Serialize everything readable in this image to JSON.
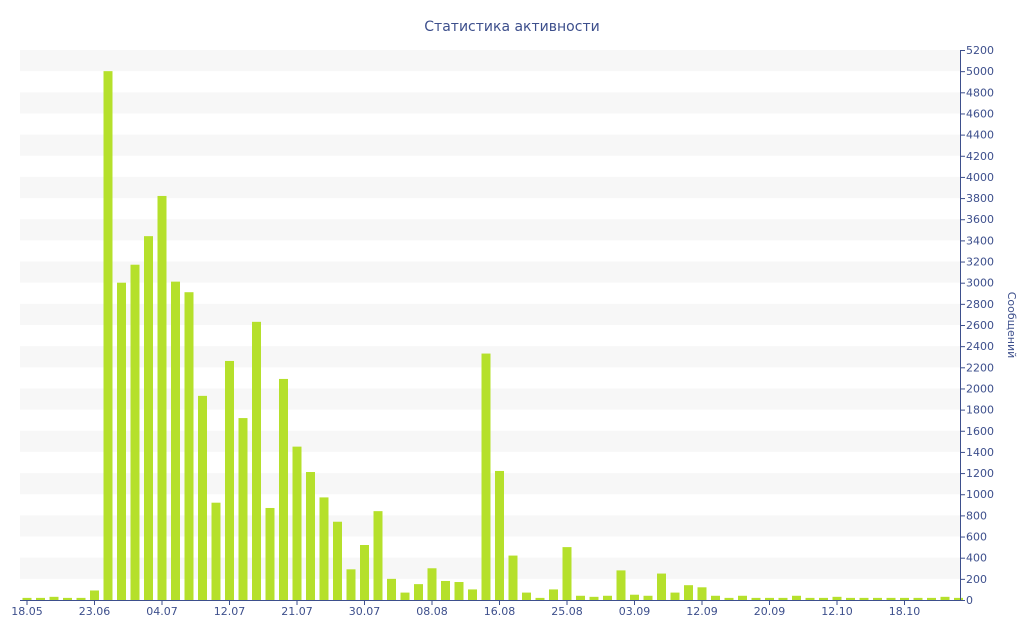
{
  "chart_data": {
    "type": "bar",
    "title": "Статистика активности",
    "ylabel": "Сообщений",
    "xlabel": "",
    "ylim": [
      0,
      5200
    ],
    "y_ticks": [
      0,
      200,
      400,
      600,
      800,
      1000,
      1200,
      1400,
      1600,
      1800,
      2000,
      2200,
      2400,
      2600,
      2800,
      3000,
      3200,
      3400,
      3600,
      3800,
      4000,
      4200,
      4400,
      4600,
      4800,
      5000,
      5200
    ],
    "x_tick_labels": [
      "18.05",
      "23.06",
      "04.07",
      "12.07",
      "21.07",
      "30.07",
      "08.08",
      "16.08",
      "25.08",
      "03.09",
      "12.09",
      "20.09",
      "12.10",
      "18.10"
    ],
    "x_tick_bar_index": [
      0,
      5,
      10,
      15,
      20,
      25,
      30,
      35,
      40,
      45,
      50,
      55,
      60,
      65
    ],
    "grid": "horizontal bands",
    "colors": {
      "bar": "#b5e02b",
      "band": "#f7f7f7",
      "text": "#3d4f8c",
      "axis": "#3d4f8c"
    },
    "values": [
      20,
      20,
      30,
      20,
      20,
      90,
      5000,
      3000,
      3170,
      3440,
      3820,
      3010,
      2910,
      1930,
      920,
      2260,
      1720,
      2630,
      870,
      2090,
      1450,
      1210,
      970,
      740,
      290,
      520,
      840,
      200,
      70,
      150,
      300,
      180,
      170,
      100,
      2330,
      1220,
      420,
      70,
      20,
      100,
      500,
      40,
      30,
      40,
      280,
      50,
      40,
      250,
      70,
      140,
      120,
      40,
      20,
      40,
      20,
      20,
      20,
      40,
      20,
      20,
      30,
      20,
      20,
      20,
      20,
      20,
      20,
      20,
      30,
      20
    ]
  }
}
